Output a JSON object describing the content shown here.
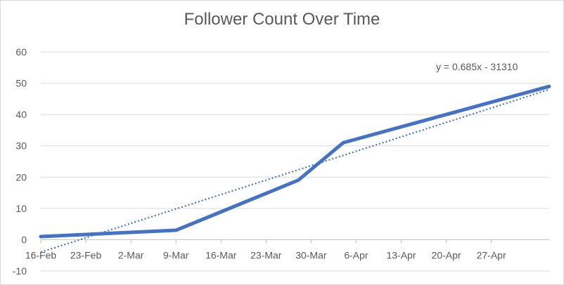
{
  "chart_data": {
    "type": "line",
    "title": "Follower Count Over Time",
    "xlabel": "",
    "ylabel": "",
    "x_ticks": [
      "16-Feb",
      "23-Feb",
      "2-Mar",
      "9-Mar",
      "16-Mar",
      "23-Mar",
      "30-Mar",
      "6-Apr",
      "13-Apr",
      "20-Apr",
      "27-Apr"
    ],
    "y_ticks": [
      "-10",
      "0",
      "10",
      "20",
      "30",
      "40",
      "50",
      "60"
    ],
    "ylim": [
      -10,
      60
    ],
    "xlim": [
      "2020-02-16",
      "2020-05-05"
    ],
    "grid": "horizontal",
    "series": [
      {
        "points": [
          {
            "x": "2020-02-16",
            "y": 1
          },
          {
            "x": "2020-03-08",
            "y": 3
          },
          {
            "x": "2020-03-27",
            "y": 19
          },
          {
            "x": "2020-04-03",
            "y": 31
          },
          {
            "x": "2020-05-05",
            "y": 49
          }
        ],
        "color": "#4472c4"
      }
    ],
    "trendline": {
      "equation": "y = 0.685x - 31310",
      "from": {
        "x": "2020-02-16",
        "y": -4
      },
      "to": {
        "x": "2020-05-05",
        "y": 48
      },
      "color": "#4472c4",
      "style": "dotted"
    }
  }
}
